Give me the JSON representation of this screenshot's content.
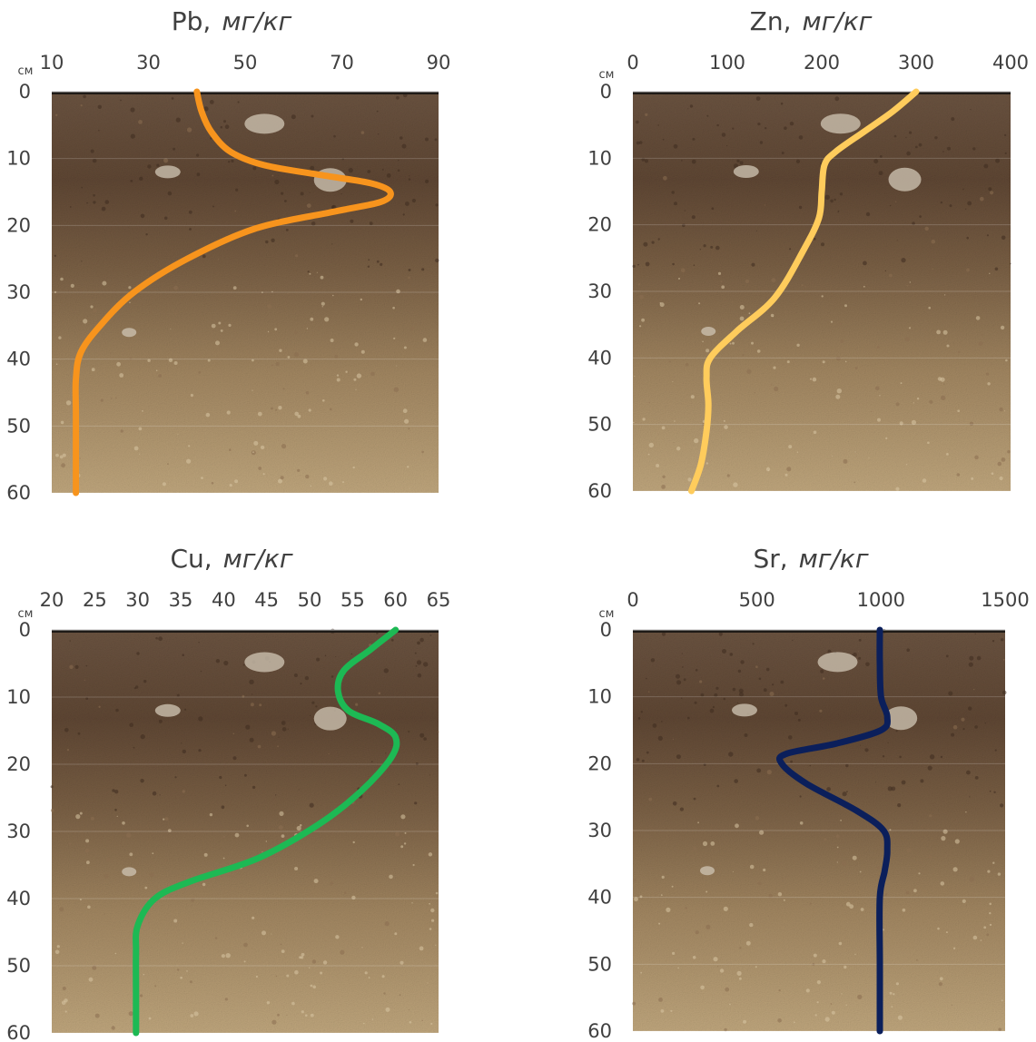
{
  "chart_data": [
    {
      "type": "line",
      "title": "Pb,",
      "title_unit": "мг/кг",
      "ylabel": "см",
      "xlim": [
        10,
        90
      ],
      "ylim": [
        0,
        60
      ],
      "x_ticks": [
        "10",
        "30",
        "50",
        "70",
        "90"
      ],
      "y_ticks": [
        "0",
        "10",
        "20",
        "30",
        "40",
        "50",
        "60"
      ],
      "color": "#F7941D",
      "series": [
        {
          "x": [
            40,
            41,
            43,
            47,
            54,
            66,
            76,
            80,
            78,
            68,
            52,
            38,
            27,
            20,
            16,
            15,
            15,
            15,
            15
          ],
          "y": [
            0,
            3,
            6,
            9,
            11,
            12.5,
            13.7,
            15,
            16.5,
            18,
            20.5,
            25,
            30,
            35,
            39,
            43,
            48,
            54,
            60
          ]
        }
      ]
    },
    {
      "type": "line",
      "title": "Zn,",
      "title_unit": "мг/кг",
      "ylabel": "см",
      "xlim": [
        0,
        400
      ],
      "ylim": [
        0,
        60
      ],
      "x_ticks": [
        "0",
        "100",
        "200",
        "300",
        "400"
      ],
      "y_ticks": [
        "0",
        "10",
        "20",
        "30",
        "40",
        "50",
        "60"
      ],
      "color": "#FFCC5C",
      "series": [
        {
          "x": [
            300,
            275,
            245,
            215,
            203,
            200,
            197,
            180,
            150,
            110,
            82,
            78,
            80,
            78,
            72,
            62
          ],
          "y": [
            0,
            3,
            6,
            9,
            11,
            15,
            19,
            24,
            31,
            36,
            40,
            43,
            47,
            51,
            56,
            60
          ]
        }
      ]
    },
    {
      "type": "line",
      "title": "Cu,",
      "title_unit": "мг/кг",
      "ylabel": "см",
      "xlim": [
        20,
        65
      ],
      "ylim": [
        0,
        60
      ],
      "x_ticks": [
        "20",
        "25",
        "30",
        "35",
        "40",
        "45",
        "50",
        "55",
        "60",
        "65"
      ],
      "y_ticks": [
        "0",
        "10",
        "20",
        "30",
        "40",
        "50",
        "60"
      ],
      "color": "#1DB954",
      "series": [
        {
          "x": [
            60,
            57,
            54,
            53.3,
            54.5,
            58,
            60,
            59.5,
            56,
            51,
            44,
            36,
            32,
            30,
            29.8,
            29.8,
            29.8
          ],
          "y": [
            0,
            3,
            6,
            9,
            12,
            14,
            16,
            19,
            24,
            29,
            34,
            37.5,
            40,
            44,
            48,
            54,
            60
          ]
        }
      ]
    },
    {
      "type": "line",
      "title": "Sr,",
      "title_unit": "мг/кг",
      "ylabel": "см",
      "xlim": [
        0,
        1500
      ],
      "ylim": [
        0,
        60
      ],
      "x_ticks": [
        "0",
        "500",
        "1000",
        "1500"
      ],
      "y_ticks": [
        "0",
        "10",
        "20",
        "30",
        "40",
        "50",
        "60"
      ],
      "color": "#0B1F5B",
      "series": [
        {
          "x": [
            995,
            995,
            1000,
            1025,
            1000,
            820,
            620,
            600,
            700,
            900,
            1010,
            1025,
            1015,
            995,
            995,
            995
          ],
          "y": [
            0,
            5,
            10,
            13,
            15,
            17,
            18.5,
            20,
            23,
            27,
            30,
            33,
            36,
            40,
            50,
            60
          ]
        }
      ]
    }
  ]
}
